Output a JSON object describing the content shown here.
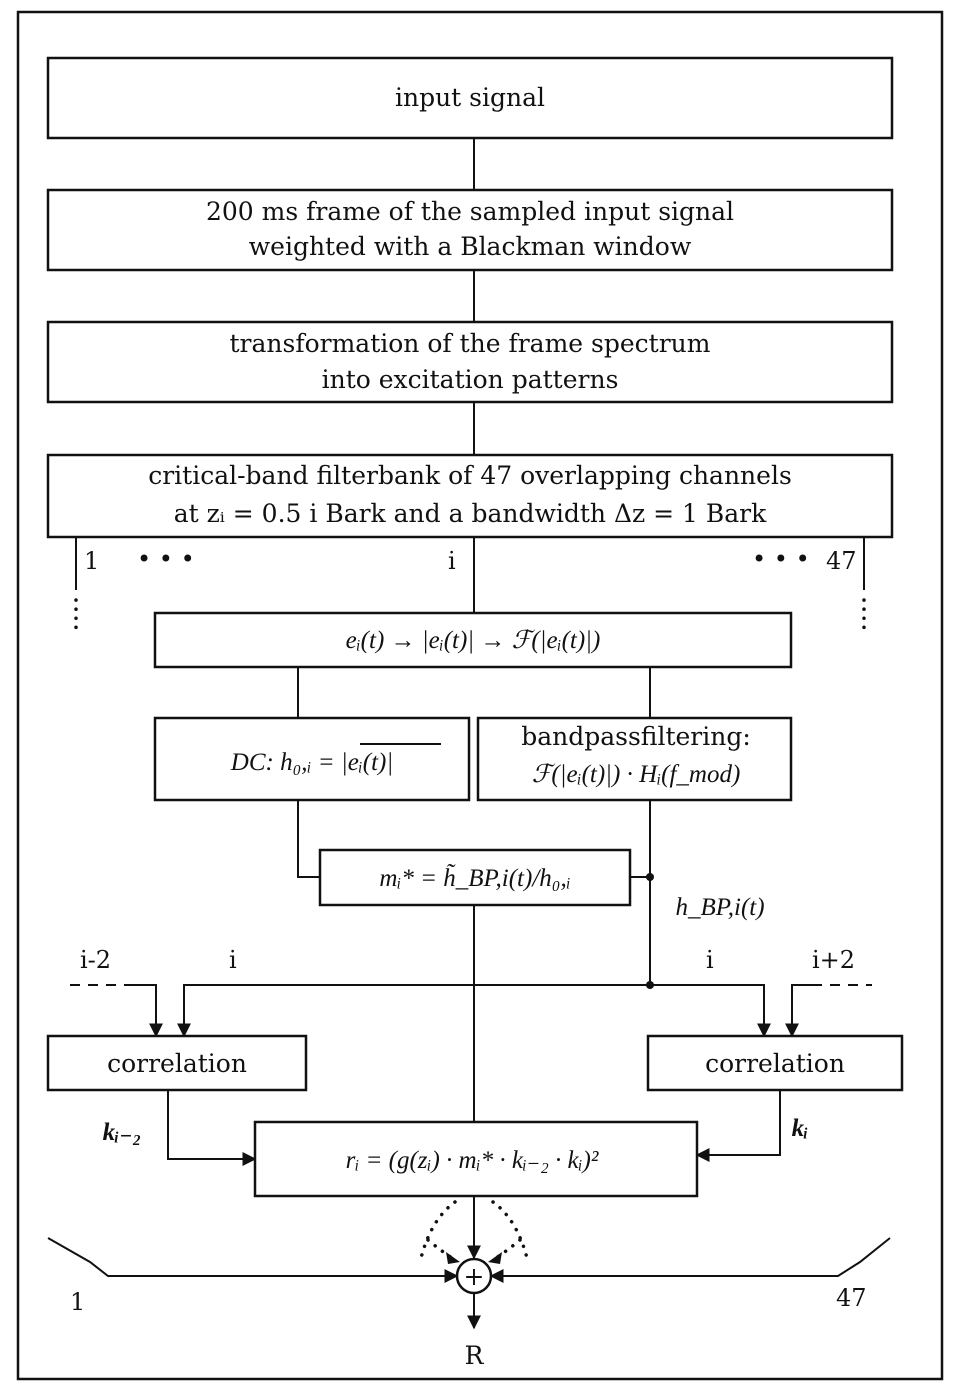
{
  "blocks": {
    "input": "input signal",
    "frame_line1": "200 ms frame of the sampled input signal",
    "frame_line2": "weighted with a Blackman window",
    "transform_line1": "transformation of the frame spectrum",
    "transform_line2": "into excitation patterns",
    "filterbank_line1": "critical-band filterbank of 47 overlapping channels",
    "filterbank_line2": "at zᵢ = 0.5 i Bark and a bandwidth Δz = 1 Bark",
    "envelope": "eᵢ(t) → |eᵢ(t)| → ℱ(|eᵢ(t)|)",
    "dc": "DC: h₀,ᵢ = |eᵢ(t)|",
    "bandpass_line1": "bandpassfiltering:",
    "bandpass_line2": "ℱ(|eᵢ(t)|) · Hᵢ(f_mod)",
    "modulation": "mᵢ* = h̃_BP,i(t)/h₀,ᵢ",
    "correlation_left": "correlation",
    "correlation_right": "correlation",
    "result": "rᵢ = (g(zᵢ) · mᵢ* · kᵢ₋₂ · kᵢ)²"
  },
  "labels": {
    "ch_first": "1",
    "ch_dots_left": "• • •",
    "ch_i": "i",
    "ch_dots_right": "• • •",
    "ch_last": "47",
    "hbp": "h_BP,i(t)",
    "in_left_far": "i-2",
    "in_left_near": "i",
    "in_right_near": "i",
    "in_right_far": "i+2",
    "k_left": "kᵢ₋₂",
    "k_right": "kᵢ",
    "sum_symbol": "+",
    "sum_left": "1",
    "sum_right": "47",
    "output": "R"
  }
}
